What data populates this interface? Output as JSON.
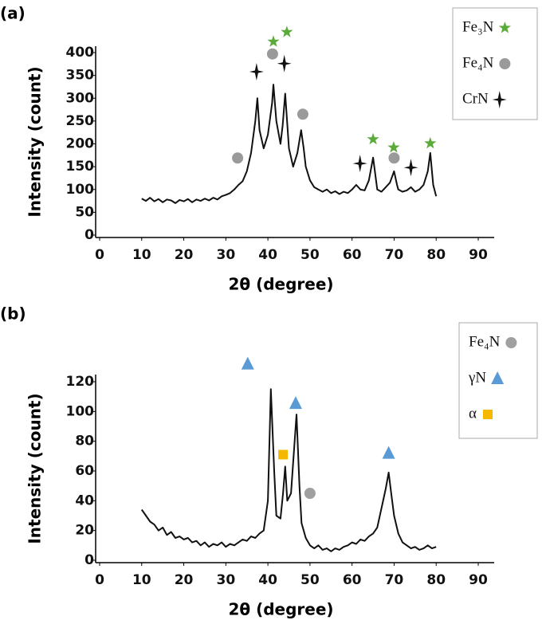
{
  "chart_data": [
    {
      "type": "line",
      "label": "(a)",
      "x_label": "2θ (degree)",
      "y_label": "Intensity (count)",
      "xlim": [
        0,
        90
      ],
      "xticks": [
        0,
        10,
        20,
        30,
        40,
        50,
        60,
        70,
        80,
        90
      ],
      "ylim": [
        0,
        400
      ],
      "yticks": [
        0,
        50,
        100,
        150,
        200,
        250,
        300,
        350,
        400
      ],
      "color": "#111111",
      "x": [
        10,
        11,
        12,
        13,
        14,
        15,
        16,
        17,
        18,
        19,
        20,
        21,
        22,
        23,
        24,
        25,
        26,
        27,
        28,
        29,
        30,
        31,
        32,
        33,
        34,
        35,
        36,
        37,
        37.5,
        38,
        39,
        40,
        41,
        41.3,
        42,
        43,
        43.5,
        44.1,
        45,
        46,
        47,
        47.9,
        48.5,
        49,
        50,
        51,
        52,
        53,
        54,
        55,
        56,
        57,
        58,
        59,
        60,
        61,
        62,
        63,
        64,
        65,
        65.7,
        66,
        67,
        68,
        69,
        70,
        70.7,
        71,
        72,
        73,
        74,
        75,
        76,
        77,
        78,
        78.6,
        79.3,
        80
      ],
      "values": [
        80,
        75,
        82,
        74,
        79,
        72,
        78,
        76,
        70,
        77,
        74,
        79,
        72,
        78,
        75,
        80,
        76,
        82,
        78,
        85,
        88,
        92,
        100,
        110,
        118,
        140,
        180,
        250,
        300,
        230,
        190,
        220,
        290,
        330,
        250,
        200,
        240,
        310,
        190,
        150,
        180,
        230,
        190,
        150,
        120,
        105,
        100,
        95,
        100,
        92,
        96,
        90,
        95,
        92,
        100,
        110,
        100,
        98,
        120,
        170,
        120,
        100,
        95,
        105,
        115,
        140,
        110,
        100,
        95,
        98,
        105,
        95,
        100,
        110,
        140,
        180,
        110,
        85
      ],
      "series": [
        {
          "name": "Fe₃N",
          "color": "#5aab3c",
          "marker": "star",
          "x": [
            41.3,
            44.5,
            65,
            69.9,
            78.6
          ],
          "values": [
            424,
            445,
            210,
            192,
            201
          ]
        },
        {
          "name": "Fe₄N",
          "color": "#9a9a9a",
          "marker": "circle",
          "x": [
            32.8,
            41.1,
            48.3,
            70
          ],
          "values": [
            169,
            397,
            265,
            169
          ]
        },
        {
          "name": "CrN",
          "color": "#111111",
          "marker": "plus",
          "x": [
            37.3,
            43.9,
            61.9,
            74
          ],
          "values": [
            358,
            376,
            157,
            148
          ]
        }
      ]
    },
    {
      "type": "line",
      "label": "(b)",
      "x_label": "2θ (degree)",
      "y_label": "Intensity (count)",
      "xlim": [
        0,
        90
      ],
      "xticks": [
        0,
        10,
        20,
        30,
        40,
        50,
        60,
        70,
        80,
        90
      ],
      "ylim": [
        0,
        120
      ],
      "yticks": [
        0,
        20,
        40,
        60,
        80,
        100,
        120
      ],
      "color": "#111111",
      "x": [
        10,
        11,
        12,
        13,
        14,
        15,
        16,
        17,
        18,
        19,
        20,
        21,
        22,
        23,
        24,
        25,
        26,
        27,
        28,
        29,
        30,
        31,
        32,
        33,
        34,
        35,
        36,
        37,
        38,
        39,
        40,
        40.7,
        41.5,
        42,
        43,
        43.6,
        44.1,
        44.6,
        45.5,
        46.8,
        47.5,
        48,
        49,
        50,
        51,
        52,
        53,
        54,
        55,
        56,
        57,
        58,
        59,
        60,
        61,
        62,
        63,
        64,
        65,
        66,
        67,
        68,
        68.7,
        69.3,
        70,
        71,
        72,
        73,
        74,
        75,
        76,
        77,
        78,
        79,
        80
      ],
      "values": [
        34,
        30,
        26,
        24,
        20,
        22,
        17,
        19,
        15,
        16,
        14,
        15,
        12,
        13,
        10,
        12,
        9,
        11,
        10,
        12,
        9,
        11,
        10,
        12,
        14,
        13,
        16,
        15,
        18,
        20,
        40,
        115,
        60,
        30,
        28,
        45,
        63,
        40,
        45,
        98,
        50,
        25,
        15,
        10,
        8,
        10,
        7,
        8,
        6,
        8,
        7,
        9,
        10,
        12,
        11,
        14,
        13,
        16,
        18,
        22,
        35,
        48,
        59,
        45,
        30,
        18,
        12,
        10,
        8,
        9,
        7,
        8,
        10,
        8,
        9
      ],
      "series": [
        {
          "name": "Fe₄N",
          "color": "#a0a0a0",
          "marker": "circle",
          "x": [
            50
          ],
          "values": [
            45
          ]
        },
        {
          "name": "γN",
          "color": "#5b9bd5",
          "marker": "triangle",
          "x": [
            35.2,
            46.6,
            68.7
          ],
          "values": [
            132,
            105.5,
            72
          ]
        },
        {
          "name": "α",
          "color": "#f5b800",
          "marker": "square",
          "x": [
            43.6
          ],
          "values": [
            71
          ]
        }
      ]
    }
  ]
}
